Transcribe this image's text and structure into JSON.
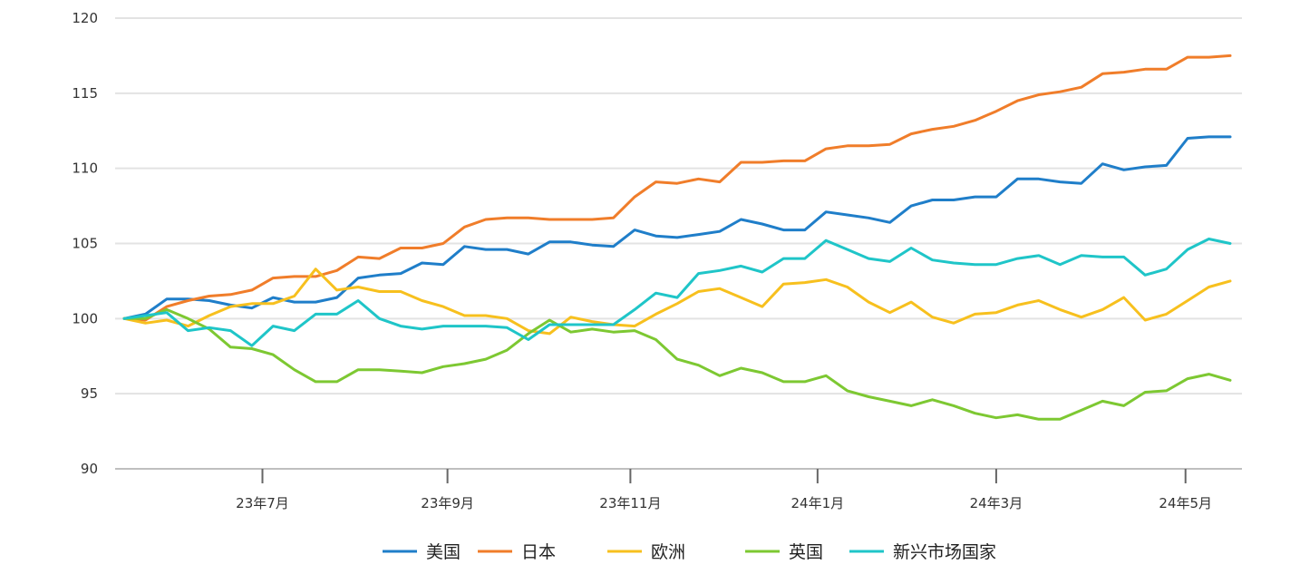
{
  "chart_data": {
    "type": "line",
    "title": "",
    "xlabel": "",
    "ylabel": "",
    "ylim": [
      90,
      120
    ],
    "yticks": [
      90,
      95,
      100,
      105,
      110,
      115,
      120
    ],
    "grid": true,
    "legend_position": "bottom",
    "x_tick_labels": [
      "23年7月",
      "23年9月",
      "23年11月",
      "24年1月",
      "24年3月",
      "24年5月"
    ],
    "x_tick_points": [
      6.5,
      15.2,
      23.8,
      32.6,
      41.0,
      49.9
    ],
    "points": 53,
    "series": [
      {
        "name": "美国",
        "color": "#1f7ec9",
        "values": [
          100,
          100.3,
          101.3,
          101.3,
          101.2,
          100.9,
          100.7,
          101.4,
          101.1,
          101.1,
          101.4,
          102.7,
          102.9,
          103.0,
          103.7,
          103.6,
          104.8,
          104.6,
          104.6,
          104.3,
          105.1,
          105.1,
          104.9,
          104.8,
          105.9,
          105.5,
          105.4,
          105.6,
          105.8,
          106.6,
          106.3,
          105.9,
          105.9,
          107.1,
          106.9,
          106.7,
          106.4,
          107.5,
          107.9,
          107.9,
          108.1,
          108.1,
          109.3,
          109.3,
          109.1,
          109.0,
          110.3,
          109.9,
          110.1,
          110.2,
          112.0,
          112.1,
          112.1
        ]
      },
      {
        "name": "日本",
        "color": "#f07d2a",
        "values": [
          100,
          99.9,
          100.8,
          101.2,
          101.5,
          101.6,
          101.9,
          102.7,
          102.8,
          102.8,
          103.2,
          104.1,
          104.0,
          104.7,
          104.7,
          105.0,
          106.1,
          106.6,
          106.7,
          106.7,
          106.6,
          106.6,
          106.6,
          106.7,
          108.1,
          109.1,
          109.0,
          109.3,
          109.1,
          110.4,
          110.4,
          110.5,
          110.5,
          111.3,
          111.5,
          111.5,
          111.6,
          112.3,
          112.6,
          112.8,
          113.2,
          113.8,
          114.5,
          114.9,
          115.1,
          115.4,
          116.3,
          116.4,
          116.6,
          116.6,
          117.4,
          117.4,
          117.5
        ]
      },
      {
        "name": "欧洲",
        "color": "#f7c01e",
        "values": [
          100,
          99.7,
          99.9,
          99.5,
          100.2,
          100.8,
          101.0,
          101.0,
          101.5,
          103.3,
          101.9,
          102.1,
          101.8,
          101.8,
          101.2,
          100.8,
          100.2,
          100.2,
          100.0,
          99.2,
          99.0,
          100.1,
          99.8,
          99.6,
          99.5,
          100.3,
          101.0,
          101.8,
          102.0,
          101.4,
          100.8,
          102.3,
          102.4,
          102.6,
          102.1,
          101.1,
          100.4,
          101.1,
          100.1,
          99.7,
          100.3,
          100.4,
          100.9,
          101.2,
          100.6,
          100.1,
          100.6,
          101.4,
          99.9,
          100.3,
          101.2,
          102.1,
          102.5
        ]
      },
      {
        "name": "英国",
        "color": "#7dc832",
        "values": [
          100,
          100.0,
          100.6,
          100.0,
          99.3,
          98.1,
          98.0,
          97.6,
          96.6,
          95.8,
          95.8,
          96.6,
          96.6,
          96.5,
          96.4,
          96.8,
          97.0,
          97.3,
          97.9,
          99.0,
          99.9,
          99.1,
          99.3,
          99.1,
          99.2,
          98.6,
          97.3,
          96.9,
          96.2,
          96.7,
          96.4,
          95.8,
          95.8,
          96.2,
          95.2,
          94.8,
          94.5,
          94.2,
          94.6,
          94.2,
          93.7,
          93.4,
          93.6,
          93.3,
          93.3,
          93.9,
          94.5,
          94.2,
          95.1,
          95.2,
          96.0,
          96.3,
          95.9
        ]
      },
      {
        "name": "新兴市场国家",
        "color": "#1fc5c8",
        "values": [
          100,
          100.2,
          100.4,
          99.2,
          99.4,
          99.2,
          98.2,
          99.5,
          99.2,
          100.3,
          100.3,
          101.2,
          100.0,
          99.5,
          99.3,
          99.5,
          99.5,
          99.5,
          99.4,
          98.6,
          99.6,
          99.6,
          99.6,
          99.6,
          100.6,
          101.7,
          101.4,
          103.0,
          103.2,
          103.5,
          103.1,
          104.0,
          104.0,
          105.2,
          104.6,
          104.0,
          103.8,
          104.7,
          103.9,
          103.7,
          103.6,
          103.6,
          104.0,
          104.2,
          103.6,
          104.2,
          104.1,
          104.1,
          102.9,
          103.3,
          104.6,
          105.3,
          105.0
        ]
      }
    ]
  }
}
